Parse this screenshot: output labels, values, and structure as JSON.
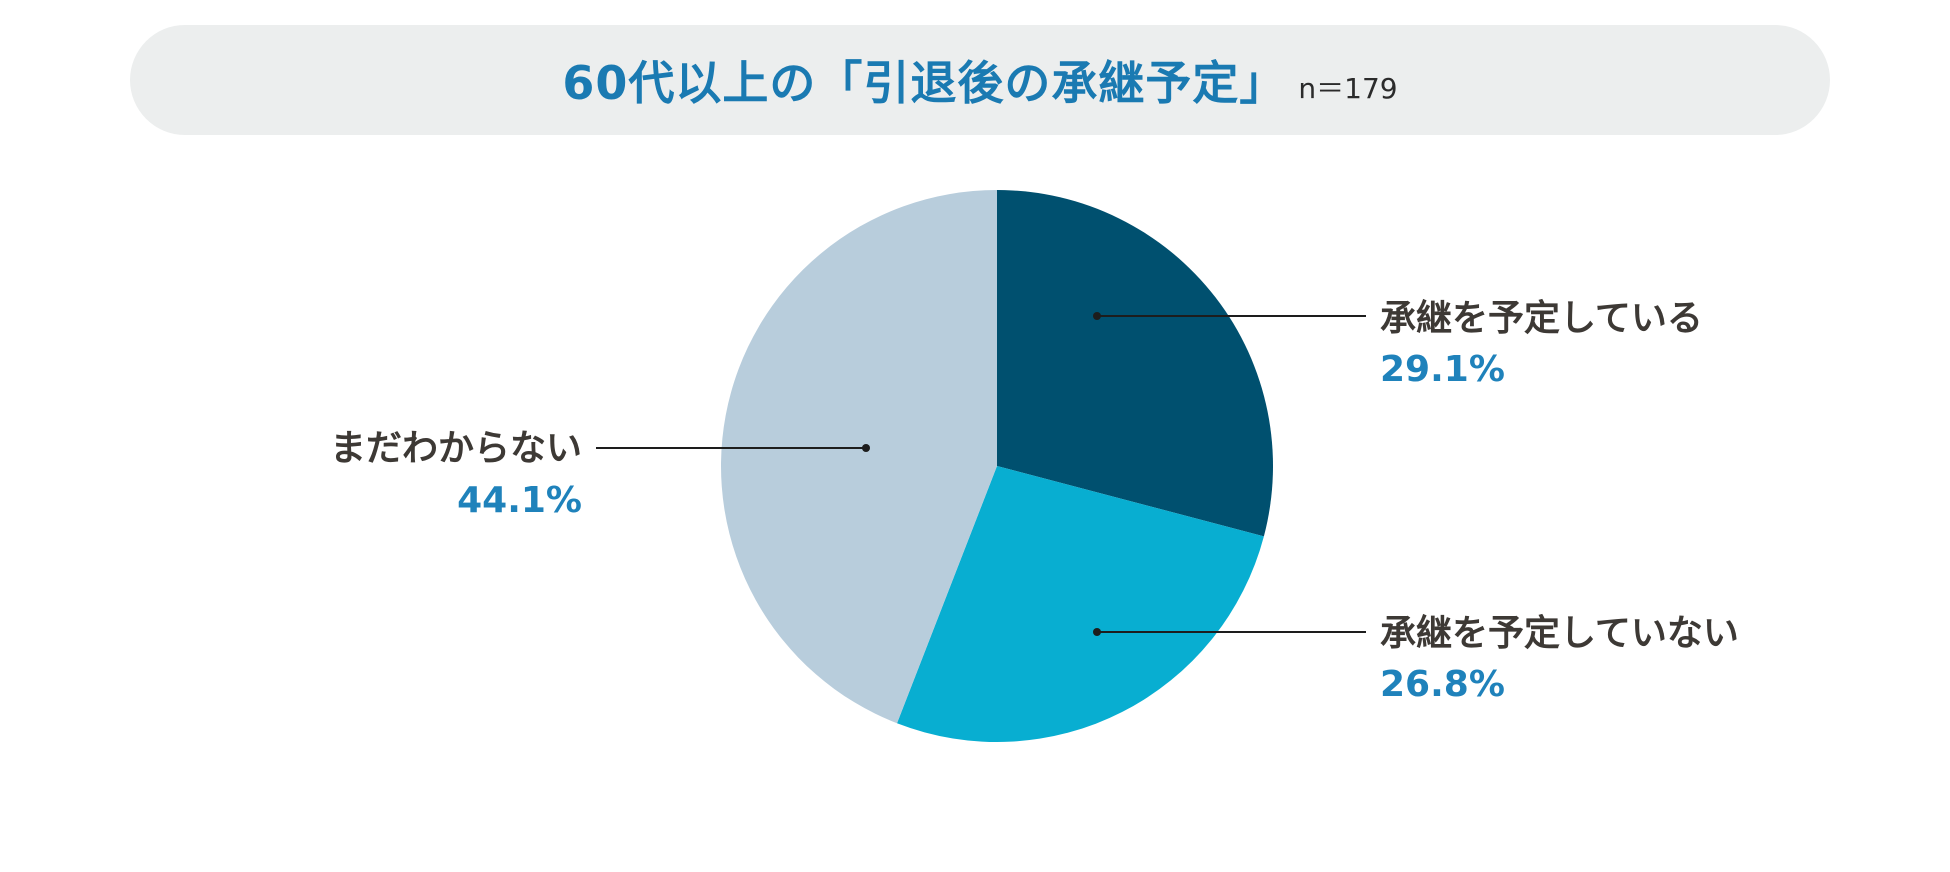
{
  "title": {
    "main": "60代以上の「引退後の承継予定」",
    "sample": "n＝179"
  },
  "colors": {
    "title": "#1a7ab2",
    "value_text": "#1f82bb",
    "label_text": "#3d3935",
    "title_background": "#eceeee"
  },
  "chart_data": {
    "type": "pie",
    "title": "60代以上の「引退後の承継予定」",
    "n": 179,
    "start": "12 o'clock",
    "direction": "clockwise",
    "slices": [
      {
        "label": "承継を予定している",
        "value": 29.1,
        "value_text": "29.1%",
        "color": "#00506f"
      },
      {
        "label": "承継を予定していない",
        "value": 26.8,
        "value_text": "26.8%",
        "color": "#08aed1"
      },
      {
        "label": "まだわからない",
        "value": 44.1,
        "value_text": "44.1%",
        "color": "#b8cddc"
      }
    ]
  }
}
